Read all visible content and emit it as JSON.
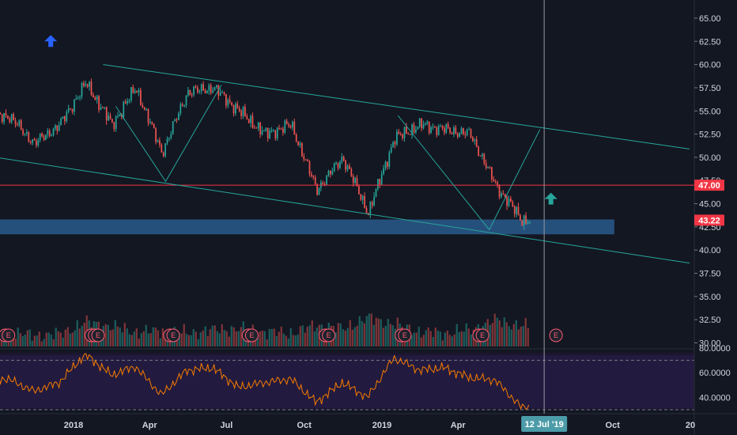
{
  "chart_data": [
    {
      "type": "candlestick",
      "title": "",
      "x_ticks": [
        "2018",
        "Apr",
        "Jul",
        "Oct",
        "2019",
        "Apr",
        "Jul",
        "Oct",
        "20"
      ],
      "y_ticks": [
        "30.00",
        "32.50",
        "35.00",
        "37.50",
        "40.00",
        "42.50",
        "45.00",
        "47.50",
        "50.00",
        "52.50",
        "55.00",
        "57.50",
        "60.00",
        "62.50",
        "65.00"
      ],
      "ylim": [
        30,
        66
      ],
      "xlim": [
        "2017-10-01",
        "2020-01-01"
      ],
      "grid": false,
      "price_series": {
        "x": [
          "2017-10",
          "2017-11",
          "2017-12",
          "2018-01",
          "2018-02",
          "2018-03",
          "2018-04",
          "2018-05",
          "2018-06",
          "2018-07",
          "2018-08",
          "2018-09",
          "2018-10",
          "2018-11",
          "2018-12",
          "2019-01",
          "2019-02",
          "2019-03",
          "2019-04",
          "2019-05",
          "2019-06"
        ],
        "close": [
          54.5,
          51.5,
          53.5,
          58.0,
          53.5,
          57.5,
          50.5,
          57.0,
          57.5,
          55.0,
          52.5,
          53.5,
          46.5,
          50.0,
          44.0,
          52.0,
          53.5,
          53.0,
          52.5,
          47.0,
          43.22
        ]
      },
      "volume": {
        "x": [
          "2017-10",
          "2017-11",
          "2017-12",
          "2018-01",
          "2018-02",
          "2018-03",
          "2018-04",
          "2018-05",
          "2018-06",
          "2018-07",
          "2018-08",
          "2018-09",
          "2018-10",
          "2018-11",
          "2018-12",
          "2019-01",
          "2019-02",
          "2019-03",
          "2019-04",
          "2019-05",
          "2019-06"
        ],
        "values": [
          1.2,
          1.0,
          1.1,
          2.2,
          1.8,
          1.3,
          1.4,
          1.2,
          1.5,
          1.6,
          1.3,
          1.2,
          1.9,
          1.6,
          2.6,
          2.0,
          1.3,
          1.2,
          1.5,
          2.4,
          1.8
        ]
      },
      "horizontal_lines": [
        {
          "value": 47.0,
          "color": "#f23645",
          "label": "47.00"
        }
      ],
      "price_tags": [
        {
          "label": "47.00",
          "value": 47.0,
          "color": "#f23645"
        },
        {
          "label": "43.22",
          "value": 43.22,
          "color": "#f23645"
        }
      ],
      "zone": {
        "from": 41.7,
        "to": 43.3,
        "x_from": "2017-10-01",
        "x_to": "2019-10-03",
        "color": "#2a5b8c"
      },
      "trend_lines": [
        {
          "points": [
            [
              "2018-02-05",
              60.0
            ],
            [
              "2019-12-31",
              50.9
            ]
          ],
          "color": "#26a69a"
        },
        {
          "points": [
            [
              "2017-10-01",
              50.0
            ],
            [
              "2019-12-31",
              38.6
            ]
          ],
          "color": "#26a69a"
        }
      ],
      "zigzag_lines": [
        {
          "points": [
            [
              "2018-02-20",
              55.5
            ],
            [
              "2018-04-20",
              47.4
            ],
            [
              "2018-06-25",
              57.8
            ]
          ],
          "color": "#26a69a"
        },
        {
          "points": [
            [
              "2019-01-20",
              54.5
            ],
            [
              "2019-05-08",
              42.2
            ],
            [
              "2019-07-07",
              53.0
            ]
          ],
          "color": "#26a69a"
        }
      ],
      "cursor": {
        "x": "2019-07-12",
        "label": "12 Jul '19"
      },
      "arrows": [
        {
          "x": "2017-12-05",
          "y": 62.5,
          "direction": "up",
          "color": "#2962ff"
        },
        {
          "x": "2019-07-20",
          "y": 45.5,
          "direction": "up",
          "color": "#26a69a"
        }
      ],
      "earnings_markers": [
        "2017-10-12",
        "2017-10-16",
        "2018-01-22",
        "2018-01-26",
        "2018-01-30",
        "2018-04-25",
        "2018-04-29",
        "2018-07-27",
        "2018-07-31",
        "2018-10-26",
        "2018-10-30",
        "2019-01-24",
        "2019-01-28",
        "2019-04-26",
        "2019-04-30",
        "2019-07-26"
      ],
      "earnings_label": "E"
    },
    {
      "type": "line",
      "title": "",
      "x": [
        "2017-10",
        "2017-11",
        "2017-12",
        "2018-01",
        "2018-02",
        "2018-03",
        "2018-04",
        "2018-05",
        "2018-06",
        "2018-07",
        "2018-08",
        "2018-09",
        "2018-10",
        "2018-11",
        "2018-12",
        "2019-01",
        "2019-02",
        "2019-03",
        "2019-04",
        "2019-05",
        "2019-06"
      ],
      "values": [
        55,
        45,
        52,
        75,
        58,
        65,
        42,
        62,
        64,
        48,
        52,
        55,
        36,
        52,
        40,
        72,
        62,
        64,
        56,
        54,
        32
      ],
      "y_ticks": [
        "40.0000",
        "60.0000",
        "80.0000"
      ],
      "ylim": [
        30,
        80
      ],
      "reference_lines": [
        70,
        30
      ],
      "color": "#f57c00"
    }
  ]
}
